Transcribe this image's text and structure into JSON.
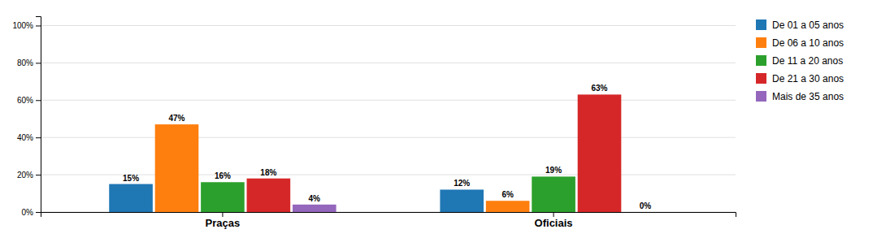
{
  "chart_data": {
    "type": "bar",
    "categories": [
      "Praças",
      "Oficiais"
    ],
    "series": [
      {
        "name": "De 01 a 05 anos",
        "values": [
          15,
          12
        ],
        "value_labels": [
          "15%",
          "12%"
        ]
      },
      {
        "name": "De 06 a 10 anos",
        "values": [
          47,
          6
        ],
        "value_labels": [
          "47%",
          "6%"
        ]
      },
      {
        "name": "De 11 a 20 anos",
        "values": [
          16,
          19
        ],
        "value_labels": [
          "16%",
          "19%"
        ]
      },
      {
        "name": "De 21 a 30 anos",
        "values": [
          18,
          63
        ],
        "value_labels": [
          "18%",
          "63%"
        ]
      },
      {
        "name": "Mais de 35 anos",
        "values": [
          4,
          0
        ],
        "value_labels": [
          "4%",
          "0%"
        ]
      }
    ],
    "ylim": [
      0,
      105
    ],
    "yticks": [
      {
        "value": 0,
        "label": "0%"
      },
      {
        "value": 20,
        "label": "20%"
      },
      {
        "value": 40,
        "label": "40%"
      },
      {
        "value": 60,
        "label": "60%"
      },
      {
        "value": 80,
        "label": "80%"
      },
      {
        "value": 100,
        "label": "100%"
      }
    ],
    "grid": true,
    "data_labels": true,
    "legend": "right"
  }
}
